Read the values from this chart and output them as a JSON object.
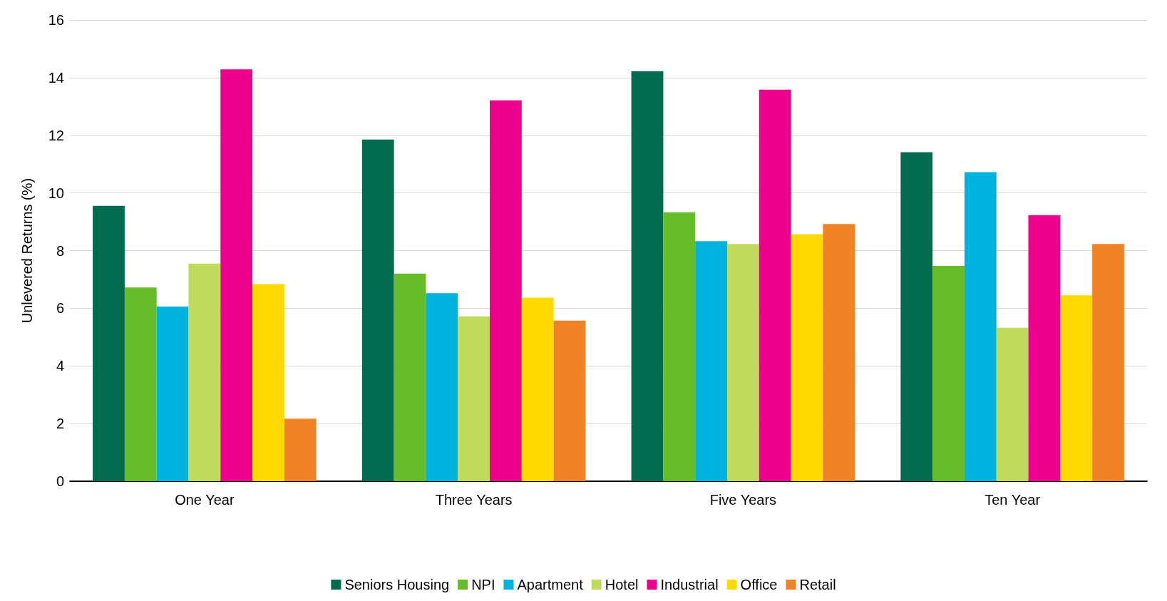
{
  "chart_data": {
    "type": "bar",
    "ylabel": "Unlevered Returns (%)",
    "categories": [
      "One Year",
      "Three Years",
      "Five Years",
      "Ten Year"
    ],
    "series": [
      {
        "name": "Seniors Housing",
        "color": "#006b4d",
        "values": [
          9.55,
          11.85,
          14.22,
          11.41
        ]
      },
      {
        "name": "NPI",
        "color": "#66bc29",
        "values": [
          6.72,
          7.2,
          9.33,
          7.47
        ]
      },
      {
        "name": "Apartment",
        "color": "#00b2de",
        "values": [
          6.06,
          6.52,
          8.33,
          10.72
        ]
      },
      {
        "name": "Hotel",
        "color": "#c0da5c",
        "values": [
          7.55,
          5.72,
          8.23,
          5.32
        ]
      },
      {
        "name": "Industrial",
        "color": "#ec008c",
        "values": [
          14.29,
          13.21,
          13.58,
          9.23
        ]
      },
      {
        "name": "Office",
        "color": "#ffd900",
        "values": [
          6.84,
          6.37,
          8.57,
          6.45
        ]
      },
      {
        "name": "Retail",
        "color": "#f28226",
        "values": [
          2.17,
          5.57,
          8.92,
          8.23
        ]
      }
    ],
    "ylim": [
      0,
      16
    ],
    "yticks": [
      0,
      2,
      4,
      6,
      8,
      10,
      12,
      14,
      16
    ],
    "grid": "y",
    "legend": "bottom"
  }
}
